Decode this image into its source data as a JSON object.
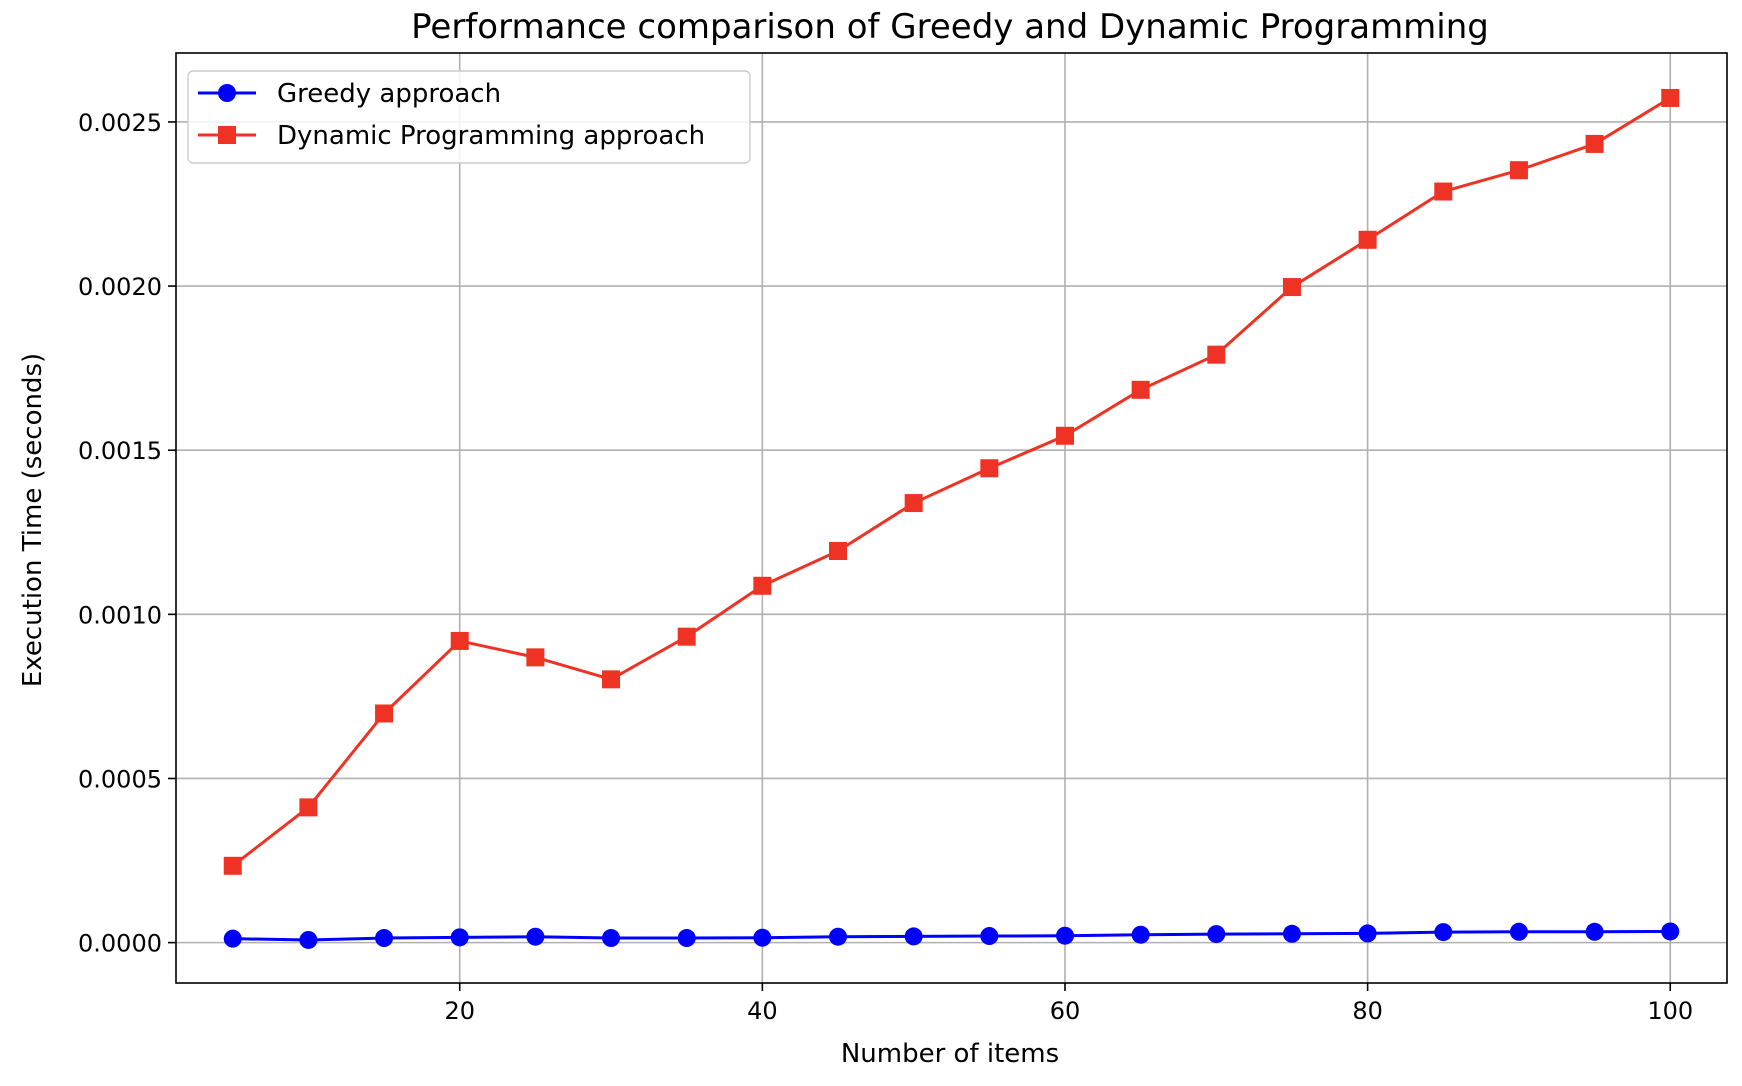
{
  "chart_data": {
    "type": "line",
    "title": "Performance comparison of Greedy and Dynamic Programming",
    "xlabel": "Number of items",
    "ylabel": "Execution Time (seconds)",
    "xlim": [
      1.25,
      103.75
    ],
    "ylim": [
      -0.000123,
      0.00271
    ],
    "x_ticks": [
      20,
      40,
      60,
      80,
      100
    ],
    "x_tick_labels": [
      "20",
      "40",
      "60",
      "80",
      "100"
    ],
    "y_ticks": [
      0.0,
      0.0005,
      0.001,
      0.0015,
      0.002,
      0.0025
    ],
    "y_tick_labels": [
      "0.0000",
      "0.0005",
      "0.0010",
      "0.0015",
      "0.0020",
      "0.0025"
    ],
    "grid": true,
    "legend_position": "upper-left",
    "x": [
      5,
      10,
      15,
      20,
      25,
      30,
      35,
      40,
      45,
      50,
      55,
      60,
      65,
      70,
      75,
      80,
      85,
      90,
      95,
      100
    ],
    "series": [
      {
        "name": "Greedy approach",
        "color": "#0000ff",
        "marker": "circle",
        "values": [
          1.2e-05,
          8e-06,
          1.4e-05,
          1.6e-05,
          1.8e-05,
          1.4e-05,
          1.4e-05,
          1.5e-05,
          1.8e-05,
          1.9e-05,
          2e-05,
          2.1e-05,
          2.4e-05,
          2.6e-05,
          2.7e-05,
          2.8e-05,
          3.2e-05,
          3.3e-05,
          3.3e-05,
          3.4e-05
        ]
      },
      {
        "name": "Dynamic Programming approach",
        "color": "#ee3224",
        "marker": "square",
        "values": [
          0.000234,
          0.000412,
          0.000698,
          0.000919,
          0.000869,
          0.000802,
          0.000932,
          0.001087,
          0.001193,
          0.001339,
          0.001445,
          0.001544,
          0.001684,
          0.001791,
          0.001997,
          0.002141,
          0.002288,
          0.002353,
          0.002433,
          0.002573
        ]
      }
    ]
  }
}
